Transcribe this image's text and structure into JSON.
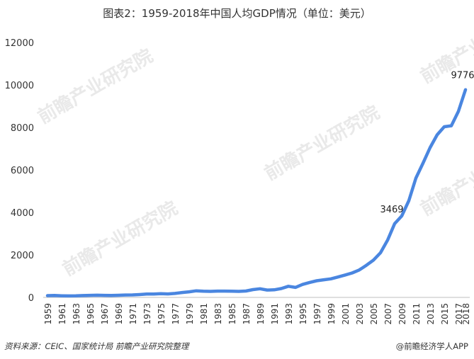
{
  "title": "图表2：1959-2018年中国人均GDP情况（单位：美元）",
  "footer": {
    "source": "资料来源：CEIC、国家统计局 前瞻产业研究院整理",
    "brand": "@前瞻经济学人APP"
  },
  "watermark": {
    "text": "前瞻产业研究院"
  },
  "chart_data": {
    "type": "line",
    "title": "图表2：1959-2018年中国人均GDP情况（单位：美元）",
    "xlabel": "",
    "ylabel": "",
    "ylim": [
      0,
      12000
    ],
    "yticks": [
      0,
      2000,
      4000,
      6000,
      8000,
      10000,
      12000
    ],
    "grid": false,
    "legend": "none",
    "color": "#4a86e0",
    "x_tick_labels": [
      "1959",
      "1961",
      "1963",
      "1965",
      "1967",
      "1969",
      "1971",
      "1973",
      "1975",
      "1977",
      "1979",
      "1981",
      "1983",
      "1985",
      "1987",
      "1989",
      "1991",
      "1993",
      "1995",
      "1997",
      "1999",
      "2001",
      "2003",
      "2005",
      "2007",
      "2009",
      "2011",
      "2013",
      "2015",
      "2017",
      "2018"
    ],
    "x": [
      1959,
      1960,
      1961,
      1962,
      1963,
      1964,
      1965,
      1966,
      1967,
      1968,
      1969,
      1970,
      1971,
      1972,
      1973,
      1974,
      1975,
      1976,
      1977,
      1978,
      1979,
      1980,
      1981,
      1982,
      1983,
      1984,
      1985,
      1986,
      1987,
      1988,
      1989,
      1990,
      1991,
      1992,
      1993,
      1994,
      1995,
      1996,
      1997,
      1998,
      1999,
      2000,
      2001,
      2002,
      2003,
      2004,
      2005,
      2006,
      2007,
      2008,
      2009,
      2010,
      2011,
      2012,
      2013,
      2014,
      2015,
      2016,
      2017,
      2018
    ],
    "series": [
      {
        "values": [
          82,
          90,
          76,
          70,
          74,
          85,
          98,
          104,
          96,
          91,
          100,
          113,
          118,
          132,
          156,
          160,
          178,
          165,
          185,
          229,
          263,
          309,
          289,
          283,
          298,
          295,
          294,
          282,
          300,
          366,
          408,
          347,
          356,
          418,
          523,
          469,
          610,
          705,
          782,
          829,
          873,
          959,
          1053,
          1149,
          1289,
          1509,
          1753,
          2099,
          2694,
          3469,
          3832,
          4550,
          5618,
          6317,
          7051,
          7652,
          8033,
          8079,
          8759,
          9776
        ]
      }
    ],
    "annotations": [
      {
        "x": 2008,
        "label": "3469"
      },
      {
        "x": 2018,
        "label": "9776"
      }
    ]
  }
}
